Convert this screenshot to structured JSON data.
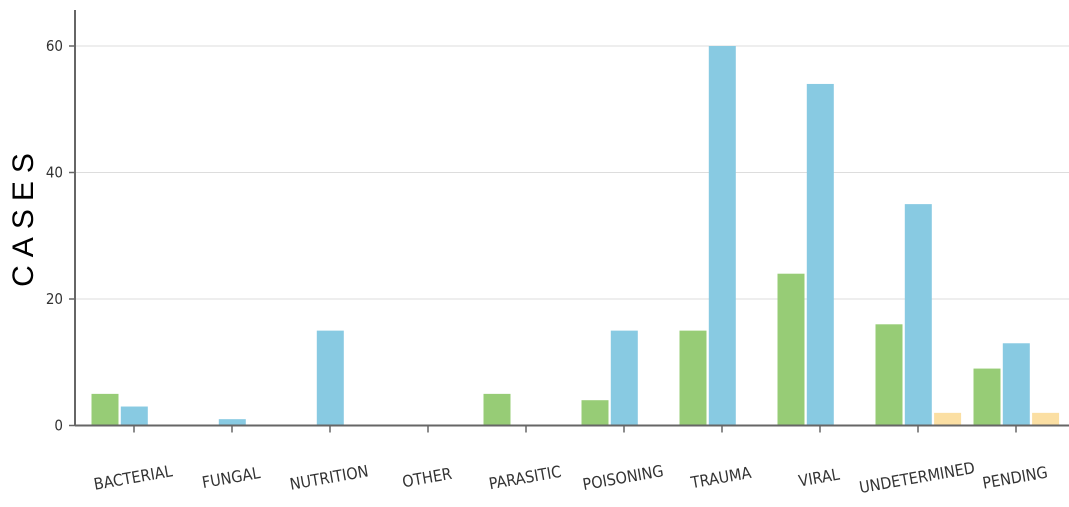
{
  "chart_data": {
    "type": "bar",
    "title": "",
    "xlabel": "",
    "ylabel": "CASES",
    "ylim": [
      0,
      66
    ],
    "yticks": [
      0,
      20,
      40,
      60
    ],
    "grid": "horizontal",
    "legend": "none",
    "categories": [
      "BACTERIAL",
      "FUNGAL",
      "NUTRITION",
      "OTHER",
      "PARASITIC",
      "POISONING",
      "TRAUMA",
      "VIRAL",
      "UNDETERMINED",
      "PENDING"
    ],
    "series": [
      {
        "color": "#97cc76",
        "values": [
          5,
          0,
          0,
          0,
          5,
          4,
          15,
          24,
          16,
          9
        ]
      },
      {
        "color": "#88cae2",
        "values": [
          3,
          1,
          15,
          0,
          0,
          15,
          60,
          54,
          35,
          13
        ]
      },
      {
        "color": "#fbdfa3",
        "values": [
          0,
          0,
          0,
          0,
          0,
          0,
          0,
          0,
          2,
          2
        ]
      }
    ]
  }
}
